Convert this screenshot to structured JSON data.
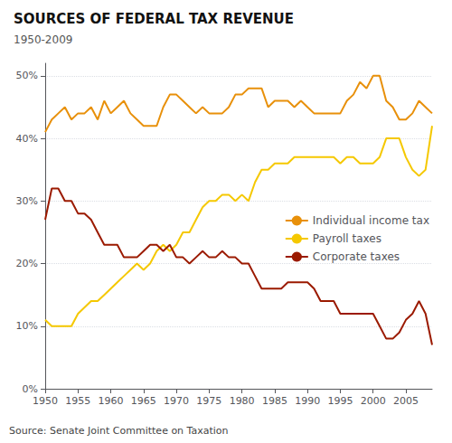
{
  "chart_data": {
    "type": "line",
    "title": "SOURCES OF FEDERAL TAX REVENUE",
    "subtitle": "1950-2009",
    "annotations": [
      "Source: Senate Joint Committee on Taxation"
    ],
    "x": [
      1950,
      1951,
      1952,
      1953,
      1954,
      1955,
      1956,
      1957,
      1958,
      1959,
      1960,
      1961,
      1962,
      1963,
      1964,
      1965,
      1966,
      1967,
      1968,
      1969,
      1970,
      1971,
      1972,
      1973,
      1974,
      1975,
      1976,
      1977,
      1978,
      1979,
      1980,
      1981,
      1982,
      1983,
      1984,
      1985,
      1986,
      1987,
      1988,
      1989,
      1990,
      1991,
      1992,
      1993,
      1994,
      1995,
      1996,
      1997,
      1998,
      1999,
      2000,
      2001,
      2002,
      2003,
      2004,
      2005,
      2006,
      2007,
      2008,
      2009
    ],
    "series": [
      {
        "name": "Individual income tax",
        "color": "#E8900A",
        "values": [
          41,
          43,
          44,
          45,
          43,
          44,
          44,
          45,
          43,
          46,
          44,
          45,
          46,
          44,
          43,
          42,
          42,
          42,
          45,
          47,
          47,
          46,
          45,
          44,
          45,
          44,
          44,
          44,
          45,
          47,
          47,
          48,
          48,
          48,
          45,
          46,
          46,
          46,
          45,
          46,
          45,
          44,
          44,
          44,
          44,
          44,
          46,
          47,
          49,
          48,
          50,
          50,
          46,
          45,
          43,
          43,
          44,
          46,
          45,
          44
        ]
      },
      {
        "name": "Payroll taxes",
        "color": "#F5C800",
        "values": [
          11,
          10,
          10,
          10,
          10,
          12,
          13,
          14,
          14,
          15,
          16,
          17,
          18,
          19,
          20,
          19,
          20,
          22,
          23,
          22,
          23,
          25,
          25,
          27,
          29,
          30,
          30,
          31,
          31,
          30,
          31,
          30,
          33,
          35,
          35,
          36,
          36,
          36,
          37,
          37,
          37,
          37,
          37,
          37,
          37,
          36,
          37,
          37,
          36,
          36,
          36,
          37,
          40,
          40,
          40,
          37,
          35,
          34,
          35,
          42
        ]
      },
      {
        "name": "Corporate taxes",
        "color": "#9B1A00",
        "values": [
          27,
          32,
          32,
          30,
          30,
          28,
          28,
          27,
          25,
          23,
          23,
          23,
          21,
          21,
          21,
          22,
          23,
          23,
          22,
          23,
          21,
          21,
          20,
          21,
          22,
          21,
          21,
          22,
          21,
          21,
          20,
          20,
          18,
          16,
          16,
          16,
          16,
          17,
          17,
          17,
          17,
          16,
          14,
          14,
          14,
          12,
          12,
          12,
          12,
          12,
          12,
          10,
          8,
          8,
          9,
          11,
          12,
          14,
          12,
          7
        ]
      }
    ],
    "xlim": [
      1950,
      2009
    ],
    "xticks": [
      1950,
      1955,
      1960,
      1965,
      1970,
      1975,
      1980,
      1985,
      1990,
      1995,
      2000,
      2005
    ],
    "ylim": [
      0,
      52
    ],
    "yticks": [
      {
        "value": 0,
        "label": "0%"
      },
      {
        "value": 10,
        "label": "10%"
      },
      {
        "value": 20,
        "label": "20%"
      },
      {
        "value": 30,
        "label": "30%"
      },
      {
        "value": 40,
        "label": "40%"
      },
      {
        "value": 50,
        "label": "50%"
      }
    ],
    "grid": true,
    "legend": "right"
  }
}
